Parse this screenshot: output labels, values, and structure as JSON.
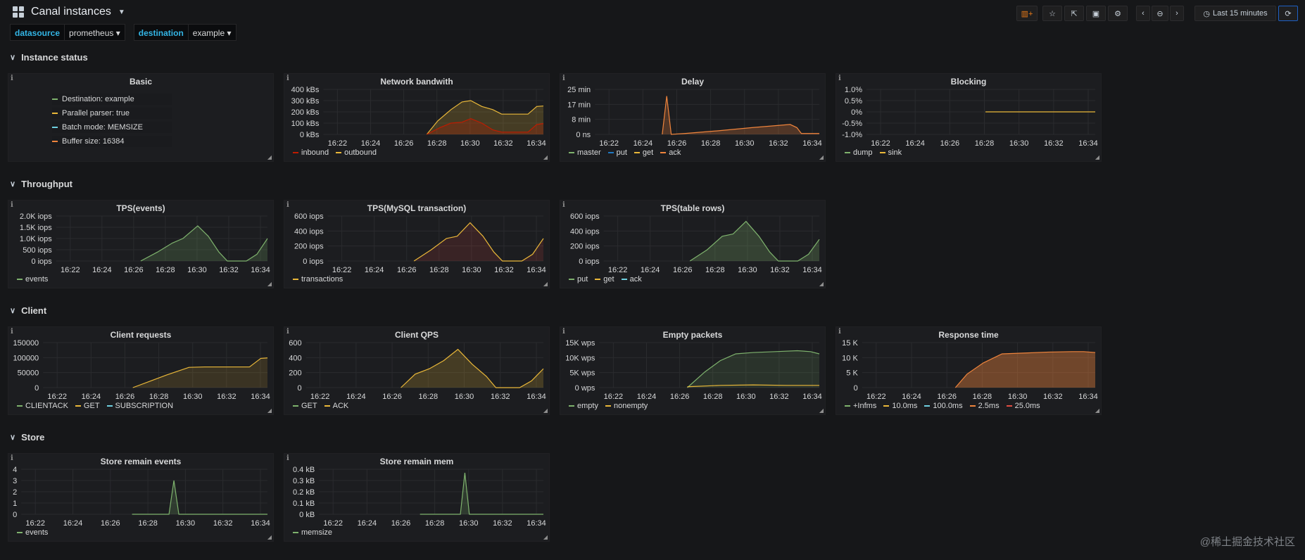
{
  "header": {
    "title": "Canal instances",
    "time_range": "Last 15 minutes",
    "buttons": [
      "add-panel",
      "star",
      "share",
      "save",
      "settings",
      "back",
      "zoom-out",
      "forward"
    ]
  },
  "variables": [
    {
      "label": "datasource",
      "value": "prometheus"
    },
    {
      "label": "destination",
      "value": "example"
    }
  ],
  "rows": {
    "instance_status": "Instance status",
    "throughput": "Throughput",
    "client": "Client",
    "store": "Store"
  },
  "basic": {
    "title": "Basic",
    "items": [
      {
        "text": "Destination: example",
        "color": "#7eb26d"
      },
      {
        "text": "Parallel parser: true",
        "color": "#eab839"
      },
      {
        "text": "Batch mode: MEMSIZE",
        "color": "#6ed0e0"
      },
      {
        "text": "Buffer size: 16384",
        "color": "#ef843c"
      }
    ]
  },
  "time_ticks": [
    "16:22",
    "16:24",
    "16:26",
    "16:28",
    "16:30",
    "16:32",
    "16:34"
  ],
  "watermark": "@稀土掘金技术社区",
  "panels": {
    "network": {
      "title": "Network bandwith",
      "yticks": [
        "400 kBs",
        "300 kBs",
        "200 kBs",
        "100 kBs",
        "0 kBs"
      ],
      "legend": [
        {
          "name": "inbound",
          "color": "#bf1b00"
        },
        {
          "name": "outbound",
          "color": "#eab839"
        }
      ]
    },
    "delay": {
      "title": "Delay",
      "yticks": [
        "25 min",
        "17 min",
        "8 min",
        "0 ns"
      ],
      "legend": [
        {
          "name": "master",
          "color": "#7eb26d"
        },
        {
          "name": "put",
          "color": "#1f78c1"
        },
        {
          "name": "get",
          "color": "#eab839"
        },
        {
          "name": "ack",
          "color": "#ef843c"
        }
      ]
    },
    "blocking": {
      "title": "Blocking",
      "yticks": [
        "1.0%",
        "0.5%",
        "0%",
        "-0.5%",
        "-1.0%"
      ],
      "legend": [
        {
          "name": "dump",
          "color": "#7eb26d"
        },
        {
          "name": "sink",
          "color": "#eab839"
        }
      ]
    },
    "tps_events": {
      "title": "TPS(events)",
      "yticks": [
        "2.0K iops",
        "1.5K iops",
        "1.0K iops",
        "500 iops",
        "0 iops"
      ],
      "legend": [
        {
          "name": "events",
          "color": "#7eb26d"
        }
      ]
    },
    "tps_mysql": {
      "title": "TPS(MySQL transaction)",
      "yticks": [
        "600 iops",
        "400 iops",
        "200 iops",
        "0 iops"
      ],
      "legend": [
        {
          "name": "transactions",
          "color": "#eab839"
        }
      ]
    },
    "tps_rows": {
      "title": "TPS(table rows)",
      "yticks": [
        "600 iops",
        "400 iops",
        "200 iops",
        "0 iops"
      ],
      "legend": [
        {
          "name": "put",
          "color": "#7eb26d"
        },
        {
          "name": "get",
          "color": "#eab839"
        },
        {
          "name": "ack",
          "color": "#6ed0e0"
        }
      ]
    },
    "client_requests": {
      "title": "Client requests",
      "yticks": [
        "150000",
        "100000",
        "50000",
        "0"
      ],
      "legend": [
        {
          "name": "CLIENTACK",
          "color": "#7eb26d"
        },
        {
          "name": "GET",
          "color": "#eab839"
        },
        {
          "name": "SUBSCRIPTION",
          "color": "#6ed0e0"
        }
      ]
    },
    "client_qps": {
      "title": "Client QPS",
      "yticks": [
        "600",
        "400",
        "200",
        "0"
      ],
      "legend": [
        {
          "name": "GET",
          "color": "#7eb26d"
        },
        {
          "name": "ACK",
          "color": "#eab839"
        }
      ]
    },
    "empty_packets": {
      "title": "Empty packets",
      "yticks": [
        "15K wps",
        "10K wps",
        "5K wps",
        "0 wps"
      ],
      "legend": [
        {
          "name": "empty",
          "color": "#7eb26d"
        },
        {
          "name": "nonempty",
          "color": "#eab839"
        }
      ]
    },
    "response_time": {
      "title": "Response time",
      "yticks": [
        "15 K",
        "10 K",
        "5 K",
        "0"
      ],
      "legend": [
        {
          "name": "+Infms",
          "color": "#7eb26d"
        },
        {
          "name": "10.0ms",
          "color": "#eab839"
        },
        {
          "name": "100.0ms",
          "color": "#6ed0e0"
        },
        {
          "name": "2.5ms",
          "color": "#ef843c"
        },
        {
          "name": "25.0ms",
          "color": "#e24d42"
        }
      ]
    },
    "store_events": {
      "title": "Store remain events",
      "yticks": [
        "4",
        "3",
        "2",
        "1",
        "0"
      ],
      "legend": [
        {
          "name": "events",
          "color": "#7eb26d"
        }
      ]
    },
    "store_mem": {
      "title": "Store remain mem",
      "yticks": [
        "0.4 kB",
        "0.3 kB",
        "0.2 kB",
        "0.1 kB",
        "0 kB"
      ],
      "legend": [
        {
          "name": "memsize",
          "color": "#7eb26d"
        }
      ]
    }
  },
  "series_shapes": {
    "network": [
      {
        "color": "#eab839",
        "fill": "rgba(234,184,57,0.18)",
        "points": [
          [
            0.78,
            0.02
          ],
          [
            0.8,
            0.18
          ],
          [
            0.84,
            0.55
          ],
          [
            0.88,
            0.8
          ],
          [
            0.91,
            0.9
          ],
          [
            0.94,
            0.75
          ],
          [
            0.97,
            0.5
          ],
          [
            1.0,
            0.5
          ],
          [
            1.03,
            0.5
          ],
          [
            1.07,
            0.5
          ],
          [
            1.1,
            0.72
          ],
          [
            1.12,
            0.72
          ]
        ]
      },
      {
        "color": "#bf1b00",
        "fill": "rgba(191,27,0,0.25)",
        "points": [
          [
            0.78,
            0.02
          ],
          [
            0.82,
            0.15
          ],
          [
            0.86,
            0.25
          ],
          [
            0.9,
            0.3
          ],
          [
            0.93,
            0.2
          ],
          [
            0.97,
            0.05
          ],
          [
            1.0,
            0.02
          ],
          [
            1.05,
            0.02
          ],
          [
            1.08,
            0.15
          ],
          [
            1.12,
            0.28
          ]
        ]
      }
    ]
  }
}
